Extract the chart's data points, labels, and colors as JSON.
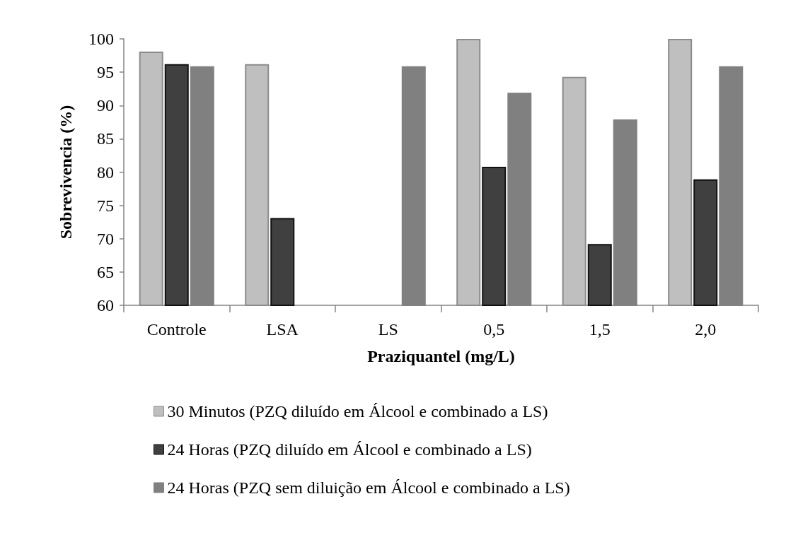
{
  "chart_data": {
    "type": "bar",
    "xlabel": "Praziquantel (mg/L)",
    "ylabel": "Sobrevivencia (%)",
    "categories": [
      "Controle",
      "LSA",
      "LS",
      "0,5",
      "1,5",
      "2,0"
    ],
    "series": [
      {
        "name": "30 Minutos (PZQ diluído em Álcool e combinado a LS)",
        "color": "#bfbfbf",
        "values": [
          98.1,
          96.2,
          null,
          100,
          94.3,
          100
        ]
      },
      {
        "name": "24 Horas (PZQ diluído em Álcool e combinado a LS)",
        "color": "#404040",
        "values": [
          96.2,
          73.1,
          null,
          80.8,
          69.2,
          78.9
        ]
      },
      {
        "name": "24 Horas (PZQ sem diluição em Álcool e combinado a LS)",
        "color": "#808080",
        "values": [
          95.9,
          null,
          95.9,
          91.9,
          87.9,
          95.9
        ]
      }
    ],
    "ylim": [
      60,
      100
    ],
    "yticks": [
      60,
      65,
      70,
      75,
      80,
      85,
      90,
      95,
      100
    ],
    "grid": false,
    "legend": "bottom"
  }
}
